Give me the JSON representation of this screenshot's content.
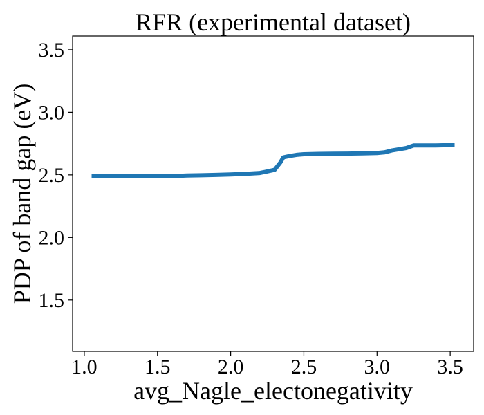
{
  "chart_data": {
    "type": "line",
    "title": "RFR (experimental dataset)",
    "xlabel": "avg_Nagle_electonegativity",
    "ylabel": "PDP of band gap (eV)",
    "xlim": [
      0.92,
      3.66
    ],
    "ylim": [
      1.09,
      3.61
    ],
    "x_ticks": [
      1.0,
      1.5,
      2.0,
      2.5,
      3.0,
      3.5
    ],
    "x_tick_labels": [
      "1.0",
      "1.5",
      "2.0",
      "2.5",
      "3.0",
      "3.5"
    ],
    "y_ticks": [
      1.5,
      2.0,
      2.5,
      3.0,
      3.5
    ],
    "y_tick_labels": [
      "1.5",
      "2.0",
      "2.5",
      "3.0",
      "3.5"
    ],
    "grid": false,
    "series": [
      {
        "color": "#1f77b4",
        "x": [
          1.05,
          1.15,
          1.25,
          1.3,
          1.4,
          1.5,
          1.6,
          1.65,
          1.7,
          1.8,
          1.9,
          2.0,
          2.1,
          2.2,
          2.3,
          2.34,
          2.36,
          2.4,
          2.45,
          2.5,
          2.6,
          2.7,
          2.8,
          2.9,
          3.0,
          3.05,
          3.1,
          3.15,
          3.2,
          3.25,
          3.3,
          3.4,
          3.45,
          3.53
        ],
        "y": [
          2.49,
          2.49,
          2.489,
          2.488,
          2.489,
          2.489,
          2.49,
          2.492,
          2.495,
          2.497,
          2.5,
          2.503,
          2.508,
          2.515,
          2.54,
          2.6,
          2.64,
          2.65,
          2.66,
          2.665,
          2.668,
          2.669,
          2.67,
          2.672,
          2.675,
          2.68,
          2.695,
          2.705,
          2.715,
          2.735,
          2.736,
          2.736,
          2.737,
          2.737
        ]
      }
    ]
  }
}
